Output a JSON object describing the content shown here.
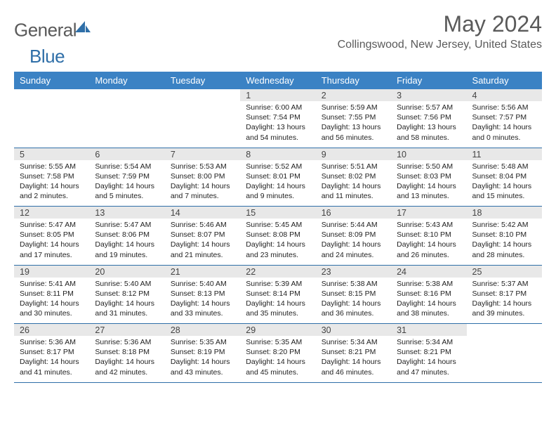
{
  "logo": {
    "general": "General",
    "blue": "Blue"
  },
  "title": "May 2024",
  "location": "Collingswood, New Jersey, United States",
  "colors": {
    "header_bg": "#3b82c4",
    "header_fg": "#ffffff",
    "rule": "#2f6fa8",
    "daynum_bg": "#e8e8e8",
    "text_muted": "#5a5a5a",
    "logo_blue": "#2f6fa8"
  },
  "day_headers": [
    "Sunday",
    "Monday",
    "Tuesday",
    "Wednesday",
    "Thursday",
    "Friday",
    "Saturday"
  ],
  "weeks": [
    [
      null,
      null,
      null,
      {
        "n": "1",
        "rise": "6:00 AM",
        "set": "7:54 PM",
        "dl": "13 hours and 54 minutes."
      },
      {
        "n": "2",
        "rise": "5:59 AM",
        "set": "7:55 PM",
        "dl": "13 hours and 56 minutes."
      },
      {
        "n": "3",
        "rise": "5:57 AM",
        "set": "7:56 PM",
        "dl": "13 hours and 58 minutes."
      },
      {
        "n": "4",
        "rise": "5:56 AM",
        "set": "7:57 PM",
        "dl": "14 hours and 0 minutes."
      }
    ],
    [
      {
        "n": "5",
        "rise": "5:55 AM",
        "set": "7:58 PM",
        "dl": "14 hours and 2 minutes."
      },
      {
        "n": "6",
        "rise": "5:54 AM",
        "set": "7:59 PM",
        "dl": "14 hours and 5 minutes."
      },
      {
        "n": "7",
        "rise": "5:53 AM",
        "set": "8:00 PM",
        "dl": "14 hours and 7 minutes."
      },
      {
        "n": "8",
        "rise": "5:52 AM",
        "set": "8:01 PM",
        "dl": "14 hours and 9 minutes."
      },
      {
        "n": "9",
        "rise": "5:51 AM",
        "set": "8:02 PM",
        "dl": "14 hours and 11 minutes."
      },
      {
        "n": "10",
        "rise": "5:50 AM",
        "set": "8:03 PM",
        "dl": "14 hours and 13 minutes."
      },
      {
        "n": "11",
        "rise": "5:48 AM",
        "set": "8:04 PM",
        "dl": "14 hours and 15 minutes."
      }
    ],
    [
      {
        "n": "12",
        "rise": "5:47 AM",
        "set": "8:05 PM",
        "dl": "14 hours and 17 minutes."
      },
      {
        "n": "13",
        "rise": "5:47 AM",
        "set": "8:06 PM",
        "dl": "14 hours and 19 minutes."
      },
      {
        "n": "14",
        "rise": "5:46 AM",
        "set": "8:07 PM",
        "dl": "14 hours and 21 minutes."
      },
      {
        "n": "15",
        "rise": "5:45 AM",
        "set": "8:08 PM",
        "dl": "14 hours and 23 minutes."
      },
      {
        "n": "16",
        "rise": "5:44 AM",
        "set": "8:09 PM",
        "dl": "14 hours and 24 minutes."
      },
      {
        "n": "17",
        "rise": "5:43 AM",
        "set": "8:10 PM",
        "dl": "14 hours and 26 minutes."
      },
      {
        "n": "18",
        "rise": "5:42 AM",
        "set": "8:10 PM",
        "dl": "14 hours and 28 minutes."
      }
    ],
    [
      {
        "n": "19",
        "rise": "5:41 AM",
        "set": "8:11 PM",
        "dl": "14 hours and 30 minutes."
      },
      {
        "n": "20",
        "rise": "5:40 AM",
        "set": "8:12 PM",
        "dl": "14 hours and 31 minutes."
      },
      {
        "n": "21",
        "rise": "5:40 AM",
        "set": "8:13 PM",
        "dl": "14 hours and 33 minutes."
      },
      {
        "n": "22",
        "rise": "5:39 AM",
        "set": "8:14 PM",
        "dl": "14 hours and 35 minutes."
      },
      {
        "n": "23",
        "rise": "5:38 AM",
        "set": "8:15 PM",
        "dl": "14 hours and 36 minutes."
      },
      {
        "n": "24",
        "rise": "5:38 AM",
        "set": "8:16 PM",
        "dl": "14 hours and 38 minutes."
      },
      {
        "n": "25",
        "rise": "5:37 AM",
        "set": "8:17 PM",
        "dl": "14 hours and 39 minutes."
      }
    ],
    [
      {
        "n": "26",
        "rise": "5:36 AM",
        "set": "8:17 PM",
        "dl": "14 hours and 41 minutes."
      },
      {
        "n": "27",
        "rise": "5:36 AM",
        "set": "8:18 PM",
        "dl": "14 hours and 42 minutes."
      },
      {
        "n": "28",
        "rise": "5:35 AM",
        "set": "8:19 PM",
        "dl": "14 hours and 43 minutes."
      },
      {
        "n": "29",
        "rise": "5:35 AM",
        "set": "8:20 PM",
        "dl": "14 hours and 45 minutes."
      },
      {
        "n": "30",
        "rise": "5:34 AM",
        "set": "8:21 PM",
        "dl": "14 hours and 46 minutes."
      },
      {
        "n": "31",
        "rise": "5:34 AM",
        "set": "8:21 PM",
        "dl": "14 hours and 47 minutes."
      },
      null
    ]
  ],
  "labels": {
    "sunrise": "Sunrise:",
    "sunset": "Sunset:",
    "daylight": "Daylight:"
  }
}
